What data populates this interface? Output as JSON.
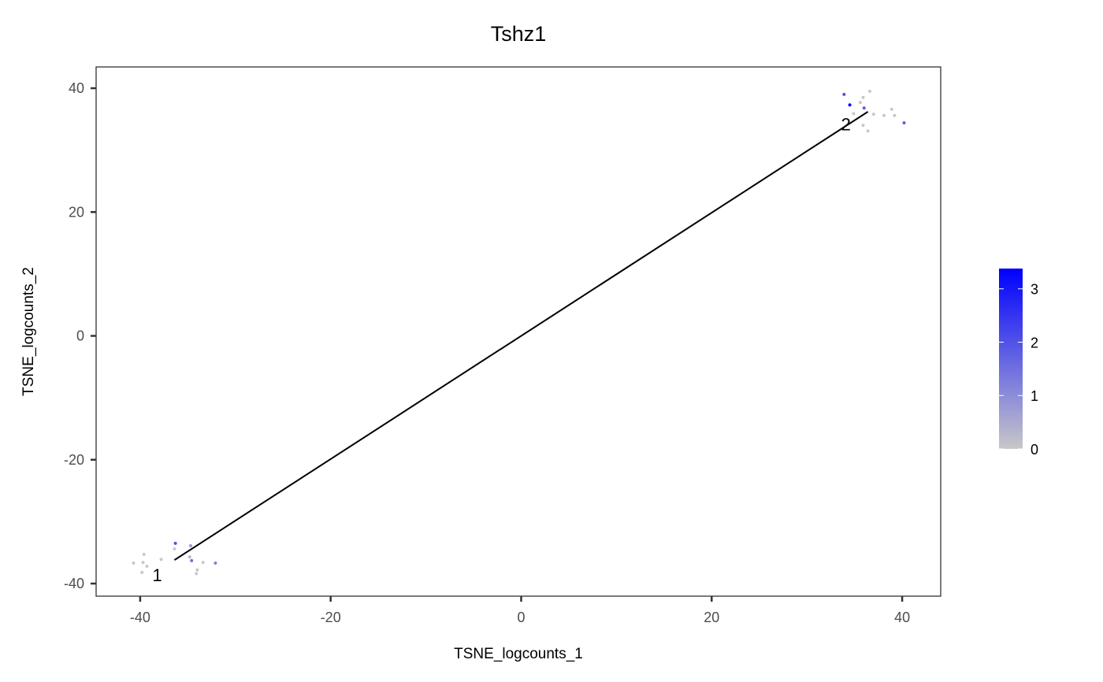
{
  "chart_data": {
    "type": "scatter",
    "title": "Tshz1",
    "xlabel": "TSNE_logcounts_1",
    "ylabel": "TSNE_logcounts_2",
    "xlim": [
      -44.5,
      44
    ],
    "ylim": [
      -42,
      43.5
    ],
    "xticks": [
      -40,
      -20,
      0,
      20,
      40
    ],
    "yticks": [
      -40,
      -20,
      0,
      20,
      40
    ],
    "xtick_labels": [
      "-40",
      "-20",
      "0",
      "20",
      "40"
    ],
    "ytick_labels": [
      "-40",
      "-20",
      "0",
      "20",
      "40"
    ],
    "grid": false,
    "color_scale": {
      "low": "#C8C8C8",
      "high": "#0000FF",
      "range": [
        0,
        3.38
      ],
      "ticks": [
        0,
        1,
        2,
        3
      ],
      "tick_labels": [
        "0",
        "1",
        "2",
        "3"
      ],
      "legend_placement": "right"
    },
    "points": [
      {
        "x": -36.3,
        "y": -33.5,
        "value": 2.0
      },
      {
        "x": -36.4,
        "y": -34.4,
        "value": 0
      },
      {
        "x": -39.6,
        "y": -35.3,
        "value": 0
      },
      {
        "x": -34.7,
        "y": -33.9,
        "value": 0.8
      },
      {
        "x": -40.7,
        "y": -36.7,
        "value": 0
      },
      {
        "x": -39.7,
        "y": -36.6,
        "value": 0
      },
      {
        "x": -39.3,
        "y": -37.2,
        "value": 0
      },
      {
        "x": -37.8,
        "y": -36.1,
        "value": 0
      },
      {
        "x": -34.8,
        "y": -35.7,
        "value": 0.3
      },
      {
        "x": -34.6,
        "y": -36.3,
        "value": 1.5
      },
      {
        "x": -33.4,
        "y": -36.6,
        "value": 0
      },
      {
        "x": -32.1,
        "y": -36.7,
        "value": 1.2
      },
      {
        "x": -34.0,
        "y": -37.8,
        "value": 0
      },
      {
        "x": -34.1,
        "y": -38.4,
        "value": 0
      },
      {
        "x": -39.8,
        "y": -38.2,
        "value": 0
      },
      {
        "x": 33.9,
        "y": 39.0,
        "value": 2.0
      },
      {
        "x": 34.5,
        "y": 37.3,
        "value": 3.3
      },
      {
        "x": 36.6,
        "y": 39.5,
        "value": 0
      },
      {
        "x": 35.9,
        "y": 38.5,
        "value": 0
      },
      {
        "x": 35.6,
        "y": 37.7,
        "value": 0
      },
      {
        "x": 36.0,
        "y": 36.8,
        "value": 1.8
      },
      {
        "x": 34.9,
        "y": 35.9,
        "value": 0
      },
      {
        "x": 37.0,
        "y": 35.8,
        "value": 0
      },
      {
        "x": 38.1,
        "y": 35.6,
        "value": 0
      },
      {
        "x": 38.9,
        "y": 36.6,
        "value": 0
      },
      {
        "x": 39.2,
        "y": 35.6,
        "value": 0
      },
      {
        "x": 40.2,
        "y": 34.4,
        "value": 1.8
      },
      {
        "x": 35.9,
        "y": 34.0,
        "value": 0
      },
      {
        "x": 36.4,
        "y": 33.1,
        "value": 0
      }
    ],
    "trajectory": [
      {
        "x": -36.4,
        "y": -36.2
      },
      {
        "x": 36.4,
        "y": 36.2
      }
    ],
    "cluster_labels": [
      {
        "text": "1",
        "x": -38.2,
        "y": -38.6
      },
      {
        "text": "2",
        "x": 34.1,
        "y": 34.2
      }
    ]
  }
}
